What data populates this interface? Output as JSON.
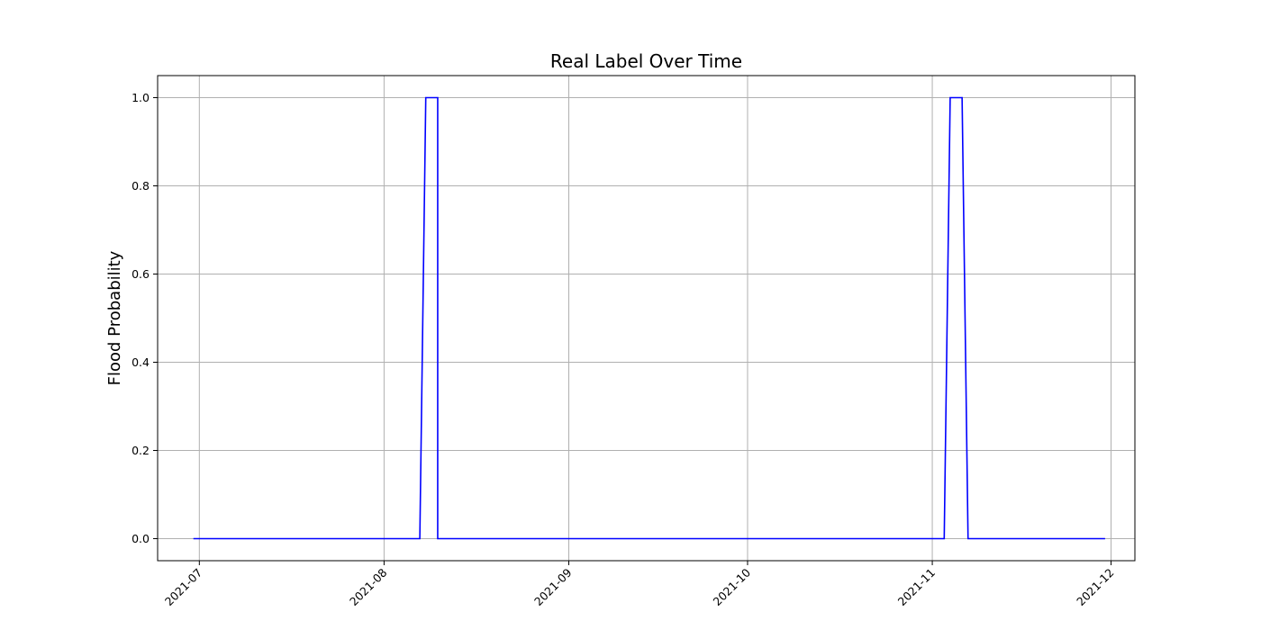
{
  "chart_data": {
    "type": "line",
    "title": "Real Label Over Time",
    "xlabel": "",
    "ylabel": "Flood Probability",
    "xlim": [
      "2021-06-24",
      "2021-12-05"
    ],
    "ylim": [
      -0.05,
      1.05
    ],
    "x_ticks": [
      "2021-07",
      "2021-08",
      "2021-09",
      "2021-10",
      "2021-11",
      "2021-12"
    ],
    "y_ticks": [
      "0.0",
      "0.2",
      "0.4",
      "0.6",
      "0.8",
      "1.0"
    ],
    "grid": true,
    "series": [
      {
        "color": "#0000ff",
        "step": true,
        "points": [
          [
            "2021-06-30",
            0
          ],
          [
            "2021-08-07",
            0
          ],
          [
            "2021-08-08",
            1
          ],
          [
            "2021-08-10",
            1
          ],
          [
            "2021-08-10",
            0
          ],
          [
            "2021-11-03",
            0
          ],
          [
            "2021-11-04",
            1
          ],
          [
            "2021-11-06",
            1
          ],
          [
            "2021-11-07",
            0
          ],
          [
            "2021-11-30",
            0
          ]
        ]
      }
    ]
  }
}
